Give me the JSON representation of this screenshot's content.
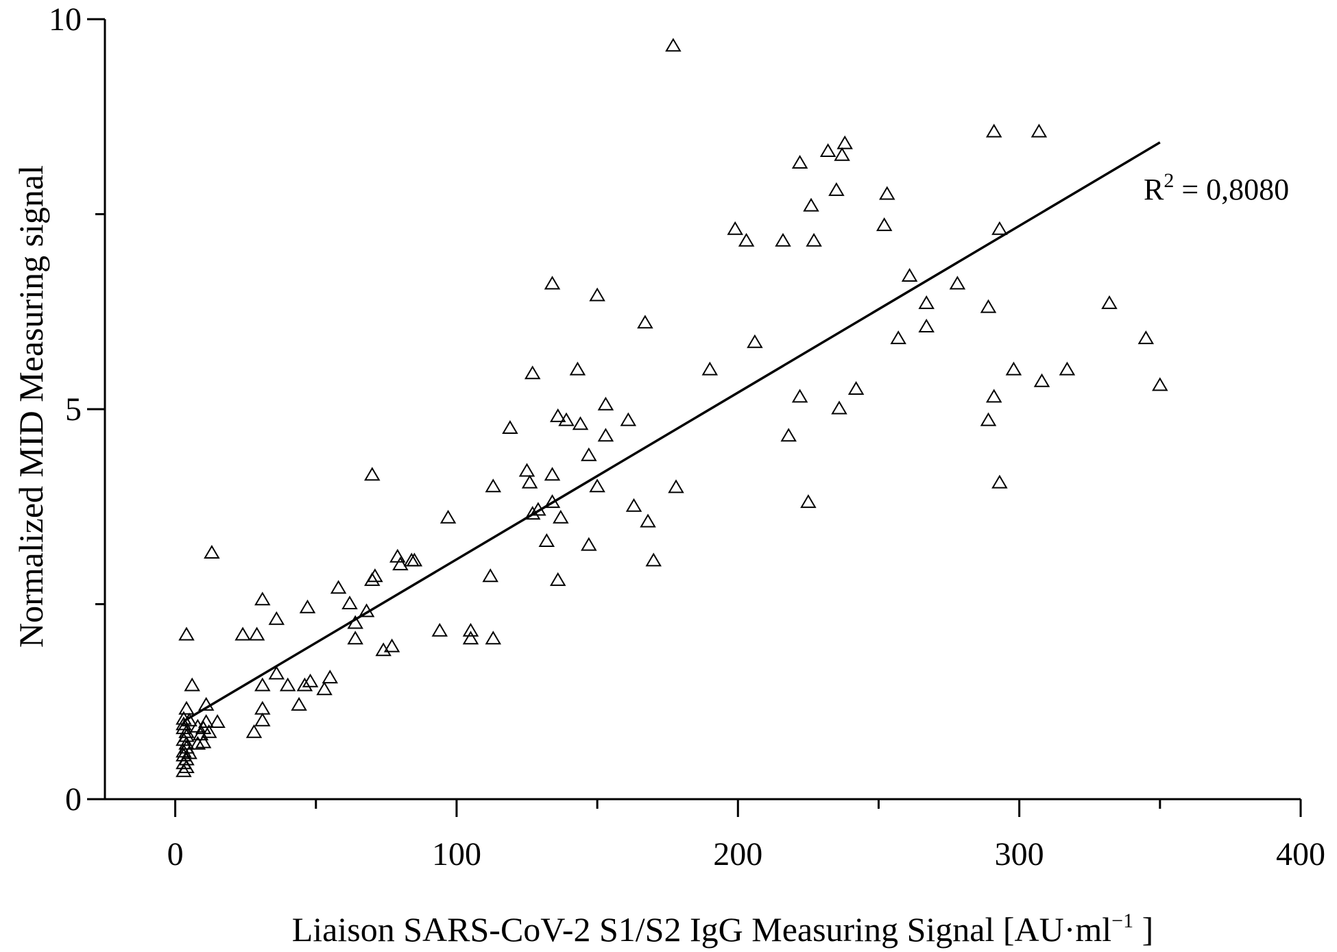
{
  "chart_data": {
    "type": "scatter",
    "title": "",
    "xlabel": "Liaison SARS-CoV-2 S1/S2 IgG Measuring Signal [AU·ml",
    "xlabel_unit_exponent": "−1",
    "xlabel_close": " ]",
    "ylabel": "Normalized MID Measuring signal",
    "xlim": [
      -25,
      400
    ],
    "ylim": [
      0,
      10
    ],
    "x_ticks": [
      0,
      100,
      200,
      300,
      400
    ],
    "y_ticks": [
      0,
      5,
      10
    ],
    "x_tick_labels": [
      "0",
      "100",
      "200",
      "300",
      "400"
    ],
    "y_tick_labels": [
      "0",
      "5",
      "10"
    ],
    "marker": "open-triangle",
    "color": "#000000",
    "grid": false,
    "legend": "none",
    "annotation": {
      "text_prefix": "R",
      "text_sup": "2",
      "text_suffix": " = 0,8080"
    },
    "regression_line": {
      "x": [
        3,
        350
      ],
      "y": [
        1.0,
        8.42
      ]
    },
    "points": [
      [
        177,
        9.65
      ],
      [
        291,
        8.55
      ],
      [
        307,
        8.55
      ],
      [
        238,
        8.4
      ],
      [
        232,
        8.3
      ],
      [
        237,
        8.25
      ],
      [
        222,
        8.15
      ],
      [
        235,
        7.8
      ],
      [
        253,
        7.75
      ],
      [
        226,
        7.6
      ],
      [
        199,
        7.3
      ],
      [
        252,
        7.35
      ],
      [
        293,
        7.3
      ],
      [
        203,
        7.15
      ],
      [
        216,
        7.15
      ],
      [
        227,
        7.15
      ],
      [
        261,
        6.7
      ],
      [
        278,
        6.6
      ],
      [
        134,
        6.6
      ],
      [
        150,
        6.45
      ],
      [
        267,
        6.35
      ],
      [
        289,
        6.3
      ],
      [
        332,
        6.35
      ],
      [
        167,
        6.1
      ],
      [
        267,
        6.05
      ],
      [
        257,
        5.9
      ],
      [
        345,
        5.9
      ],
      [
        206,
        5.85
      ],
      [
        143,
        5.5
      ],
      [
        190,
        5.5
      ],
      [
        127,
        5.45
      ],
      [
        298,
        5.5
      ],
      [
        317,
        5.5
      ],
      [
        308,
        5.35
      ],
      [
        350,
        5.3
      ],
      [
        242,
        5.25
      ],
      [
        222,
        5.15
      ],
      [
        291,
        5.15
      ],
      [
        153,
        5.05
      ],
      [
        236,
        5.0
      ],
      [
        136,
        4.9
      ],
      [
        139,
        4.85
      ],
      [
        144,
        4.8
      ],
      [
        161,
        4.85
      ],
      [
        289,
        4.85
      ],
      [
        119,
        4.75
      ],
      [
        153,
        4.65
      ],
      [
        218,
        4.65
      ],
      [
        147,
        4.4
      ],
      [
        125,
        4.2
      ],
      [
        134,
        4.15
      ],
      [
        70,
        4.15
      ],
      [
        126,
        4.05
      ],
      [
        150,
        4.0
      ],
      [
        113,
        4.0
      ],
      [
        178,
        3.99
      ],
      [
        293,
        4.05
      ],
      [
        134,
        3.8
      ],
      [
        225,
        3.8
      ],
      [
        127,
        3.65
      ],
      [
        129,
        3.7
      ],
      [
        137,
        3.6
      ],
      [
        163,
        3.75
      ],
      [
        97,
        3.6
      ],
      [
        168,
        3.55
      ],
      [
        132,
        3.3
      ],
      [
        147,
        3.25
      ],
      [
        170,
        3.05
      ],
      [
        13,
        3.15
      ],
      [
        79,
        3.1
      ],
      [
        84,
        3.05
      ],
      [
        85,
        3.05
      ],
      [
        80,
        3.0
      ],
      [
        71,
        2.85
      ],
      [
        70,
        2.8
      ],
      [
        112,
        2.85
      ],
      [
        136,
        2.8
      ],
      [
        58,
        2.7
      ],
      [
        31,
        2.55
      ],
      [
        47,
        2.45
      ],
      [
        62,
        2.5
      ],
      [
        68,
        2.4
      ],
      [
        36,
        2.3
      ],
      [
        64,
        2.25
      ],
      [
        94,
        2.15
      ],
      [
        105,
        2.15
      ],
      [
        4,
        2.1
      ],
      [
        24,
        2.1
      ],
      [
        29,
        2.1
      ],
      [
        105,
        2.05
      ],
      [
        113,
        2.05
      ],
      [
        64,
        2.05
      ],
      [
        77,
        1.95
      ],
      [
        74,
        1.9
      ],
      [
        36,
        1.6
      ],
      [
        55,
        1.55
      ],
      [
        31,
        1.45
      ],
      [
        40,
        1.45
      ],
      [
        46,
        1.45
      ],
      [
        48,
        1.5
      ],
      [
        53,
        1.4
      ],
      [
        6,
        1.45
      ],
      [
        11,
        1.2
      ],
      [
        44,
        1.2
      ],
      [
        31,
        1.15
      ],
      [
        4,
        1.15
      ],
      [
        31,
        1.0
      ],
      [
        15,
        0.98
      ],
      [
        5,
        1.0
      ],
      [
        11,
        0.98
      ],
      [
        8,
        0.92
      ],
      [
        3,
        0.95
      ],
      [
        10,
        0.9
      ],
      [
        28,
        0.85
      ],
      [
        12,
        0.85
      ],
      [
        9,
        0.82
      ],
      [
        4,
        0.8
      ],
      [
        3,
        0.75
      ],
      [
        10,
        0.72
      ],
      [
        8,
        0.7
      ],
      [
        4,
        0.65
      ],
      [
        3,
        0.6
      ],
      [
        3,
        0.55
      ],
      [
        4,
        0.5
      ],
      [
        3,
        0.45
      ],
      [
        4,
        0.4
      ],
      [
        3,
        0.35
      ],
      [
        4,
        0.85
      ],
      [
        3,
        0.9
      ],
      [
        4,
        0.7
      ],
      [
        3,
        1.02
      ],
      [
        5,
        0.58
      ]
    ]
  }
}
